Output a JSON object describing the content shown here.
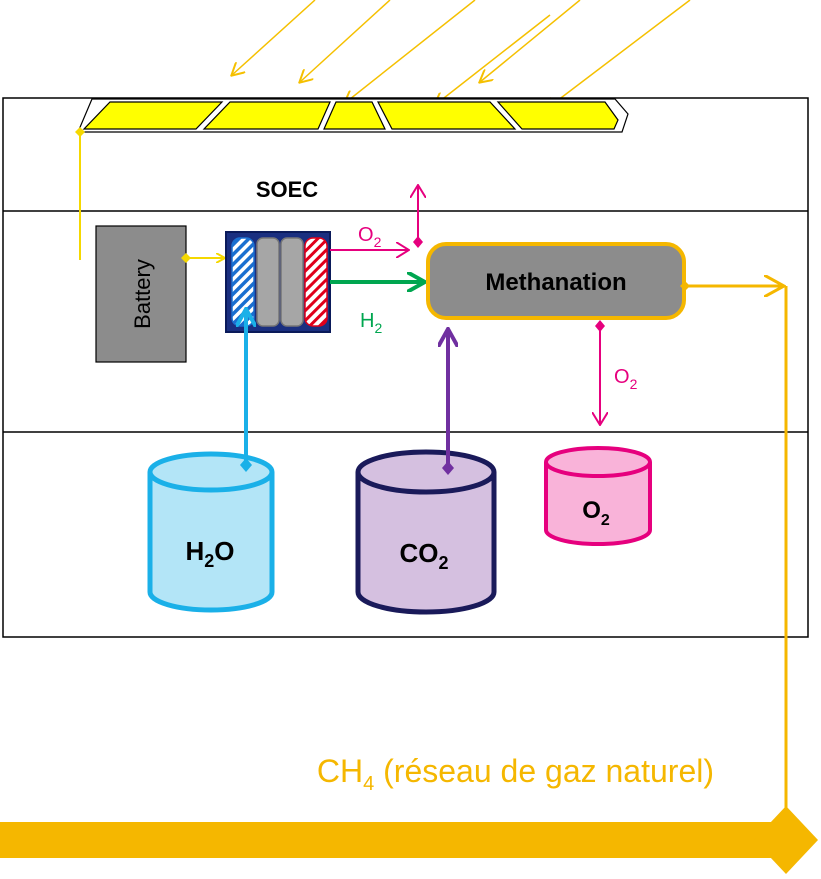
{
  "labels": {
    "soec": "SOEC",
    "battery": "Battery",
    "methanation": "Methanation",
    "o2_out": [
      "O",
      "2"
    ],
    "h2_out": [
      "H",
      "2"
    ],
    "o2_meth": [
      "O",
      "2"
    ],
    "tank_h2o": [
      "H",
      "2",
      "O"
    ],
    "tank_co2": [
      "CO",
      "2"
    ],
    "tank_o2": [
      "O",
      "2"
    ],
    "ch4": [
      "CH",
      "4",
      " (réseau de gaz naturel)"
    ]
  }
}
